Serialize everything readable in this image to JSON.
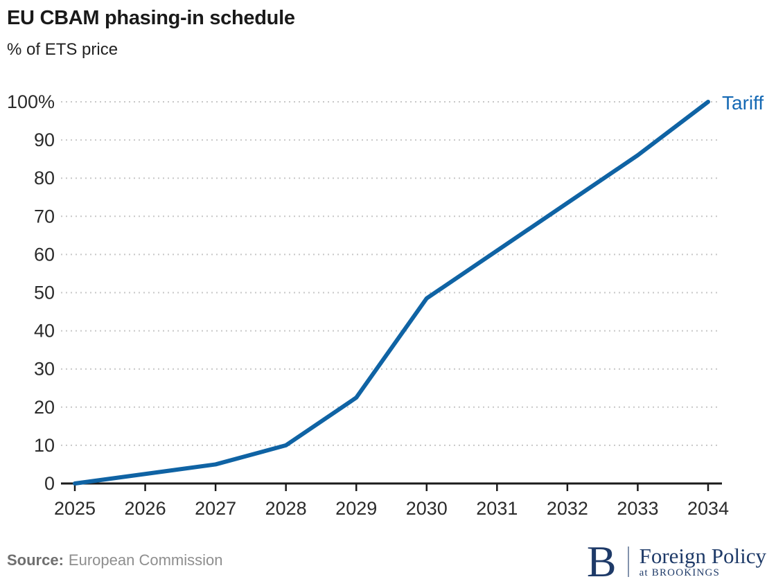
{
  "header": {
    "title": "EU CBAM phasing-in schedule",
    "subtitle": "% of ETS price"
  },
  "chart_data": {
    "type": "line",
    "title": "EU CBAM phasing-in schedule",
    "subtitle": "% of ETS price",
    "xlabel": "",
    "ylabel": "% of ETS price",
    "x": [
      2025,
      2026,
      2027,
      2028,
      2029,
      2030,
      2031,
      2032,
      2033,
      2034
    ],
    "series": [
      {
        "name": "Tariff",
        "color": "#0f63a4",
        "values": [
          0,
          2.5,
          5,
          10,
          22.5,
          48.5,
          61,
          73.5,
          86,
          100
        ]
      }
    ],
    "ylim": [
      0,
      100
    ],
    "yticks": [
      0,
      10,
      20,
      30,
      40,
      50,
      60,
      70,
      80,
      90,
      100
    ],
    "ytick_labels": [
      "0",
      "10",
      "20",
      "30",
      "40",
      "50",
      "60",
      "70",
      "80",
      "90",
      "100%"
    ],
    "grid": "horizontal-dotted",
    "legend_position": "end-of-line-label"
  },
  "footer": {
    "source_label": "Source:",
    "source_value": "European Commission"
  },
  "logo": {
    "initial": "B",
    "program": "Foreign Policy",
    "tagline": "at BROOKINGS"
  },
  "colors": {
    "line": "#0f63a4",
    "series_label": "#1569b4",
    "logo": "#1e3a68",
    "grid": "#c7c7c7",
    "axis": "#1a1a1a",
    "text": "#1a1a1a",
    "muted": "#8e8e8e",
    "source_label": "#6f6f6f"
  }
}
